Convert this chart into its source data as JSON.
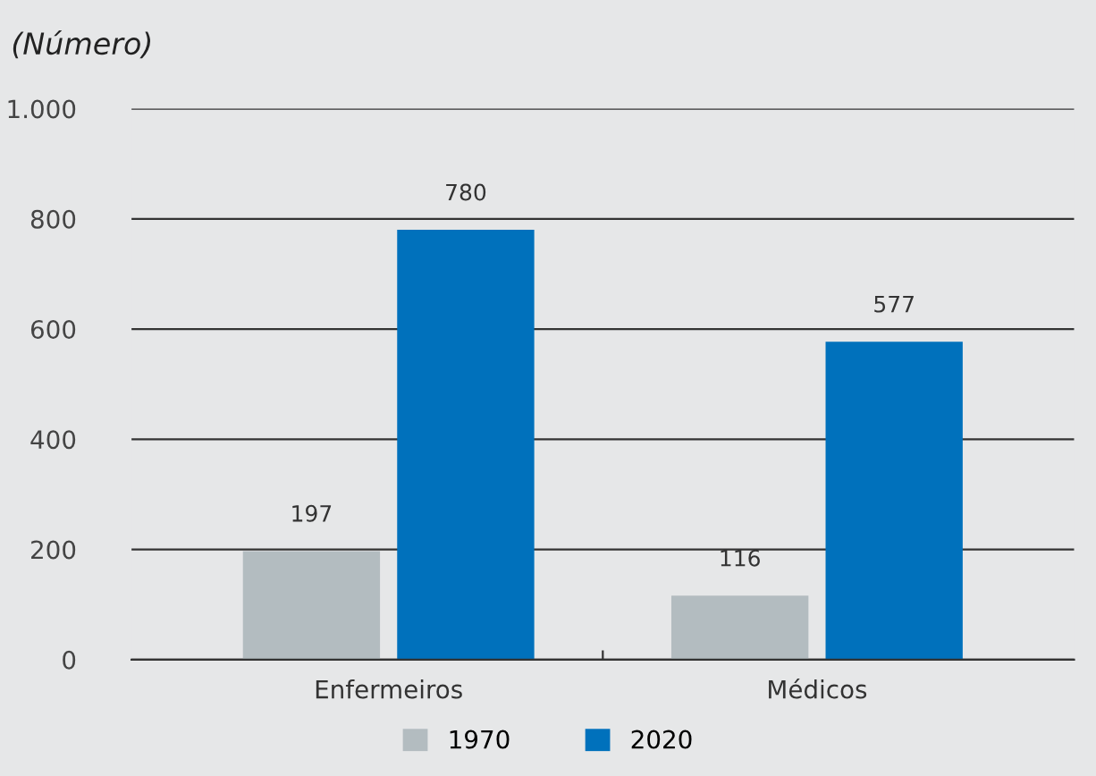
{
  "chart_data": {
    "type": "bar",
    "subtitle": "(Número)",
    "categories": [
      "Enfermeiros",
      "Médicos"
    ],
    "series": [
      {
        "name": "1970",
        "color": "#b3bcc0",
        "values": [
          197,
          116
        ]
      },
      {
        "name": "2020",
        "color": "#0071bc",
        "values": [
          780,
          577
        ]
      }
    ],
    "ylim": [
      0,
      1000
    ],
    "yticks": [
      0,
      200,
      400,
      600,
      800,
      {
        "value": 1000,
        "label": "1.000"
      }
    ],
    "grid": "y",
    "legend": "bottom",
    "data_labels": true
  }
}
